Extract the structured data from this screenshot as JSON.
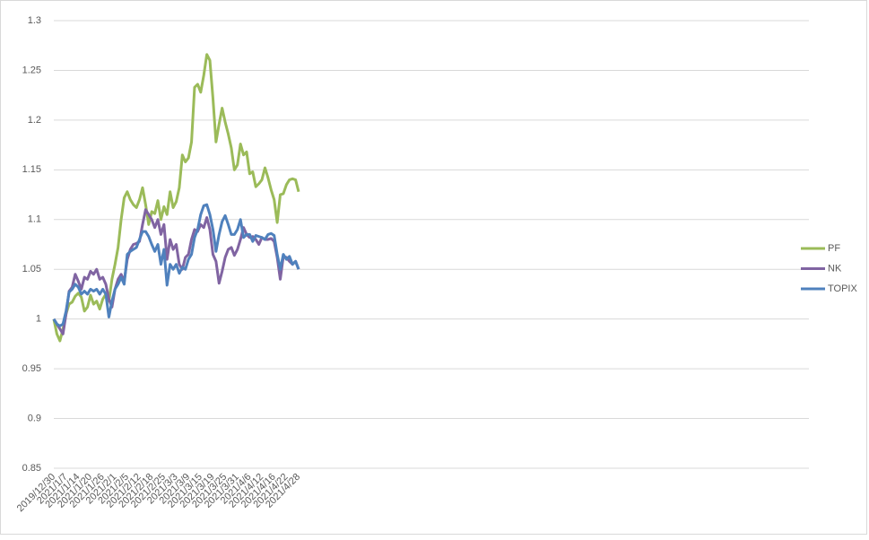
{
  "chart_data": {
    "type": "line",
    "categories": [
      "2019/12/30",
      null,
      null,
      null,
      "2021/1/7",
      null,
      null,
      null,
      "2021/1/14",
      null,
      null,
      null,
      "2021/1/20",
      null,
      null,
      null,
      "2021/1/26",
      null,
      null,
      null,
      "2021/2/1",
      null,
      null,
      null,
      "2021/2/5",
      null,
      null,
      null,
      "2021/2/12",
      null,
      null,
      null,
      "2021/2/18",
      null,
      null,
      null,
      "2021/2/25",
      null,
      null,
      null,
      "2021/3/3",
      null,
      null,
      null,
      "2021/3/9",
      null,
      null,
      null,
      "2021/3/15",
      null,
      null,
      null,
      "2021/3/19",
      null,
      null,
      null,
      "2021/3/25",
      null,
      null,
      null,
      "2021/3/31",
      null,
      null,
      null,
      "2021/4/6",
      null,
      null,
      null,
      "2021/4/12",
      null,
      null,
      null,
      "2021/4/16",
      null,
      null,
      null,
      "2021/4/22",
      null,
      null,
      null,
      "2021/4/28"
    ],
    "series": [
      {
        "name": "PF",
        "color": "#9bbb59",
        "values": [
          1.0,
          0.985,
          0.978,
          0.99,
          1.005,
          1.015,
          1.017,
          1.023,
          1.026,
          1.022,
          1.008,
          1.012,
          1.024,
          1.015,
          1.018,
          1.01,
          1.02,
          1.025,
          1.018,
          1.04,
          1.055,
          1.072,
          1.1,
          1.122,
          1.128,
          1.12,
          1.115,
          1.112,
          1.12,
          1.132,
          1.115,
          1.095,
          1.108,
          1.106,
          1.119,
          1.1,
          1.113,
          1.105,
          1.128,
          1.112,
          1.118,
          1.132,
          1.165,
          1.158,
          1.162,
          1.178,
          1.233,
          1.236,
          1.228,
          1.245,
          1.266,
          1.26,
          1.222,
          1.178,
          1.196,
          1.212,
          1.198,
          1.186,
          1.172,
          1.15,
          1.155,
          1.176,
          1.165,
          1.168,
          1.146,
          1.148,
          1.133,
          1.136,
          1.14,
          1.152,
          1.142,
          1.13,
          1.12,
          1.097,
          1.125,
          1.126,
          1.135,
          1.14,
          1.141,
          1.14,
          1.128
        ]
      },
      {
        "name": "NK",
        "color": "#8064a2",
        "values": [
          1.0,
          0.995,
          0.99,
          0.985,
          1.005,
          1.028,
          1.032,
          1.045,
          1.038,
          1.03,
          1.042,
          1.04,
          1.048,
          1.045,
          1.05,
          1.04,
          1.042,
          1.035,
          1.02,
          1.012,
          1.03,
          1.04,
          1.045,
          1.038,
          1.06,
          1.07,
          1.075,
          1.076,
          1.078,
          1.095,
          1.11,
          1.105,
          1.1,
          1.092,
          1.1,
          1.085,
          1.095,
          1.06,
          1.08,
          1.07,
          1.075,
          1.055,
          1.05,
          1.062,
          1.065,
          1.08,
          1.09,
          1.088,
          1.095,
          1.092,
          1.102,
          1.09,
          1.065,
          1.058,
          1.036,
          1.048,
          1.062,
          1.07,
          1.072,
          1.064,
          1.07,
          1.08,
          1.092,
          1.085,
          1.082,
          1.083,
          1.08,
          1.075,
          1.082,
          1.08,
          1.08,
          1.081,
          1.078,
          1.062,
          1.04,
          1.063,
          1.062,
          1.058,
          1.055,
          1.058,
          1.05
        ]
      },
      {
        "name": "TOPIX",
        "color": "#4f81bd",
        "values": [
          1.0,
          0.995,
          0.993,
          0.995,
          1.008,
          1.027,
          1.03,
          1.035,
          1.032,
          1.025,
          1.028,
          1.025,
          1.03,
          1.028,
          1.03,
          1.025,
          1.03,
          1.025,
          1.002,
          1.018,
          1.03,
          1.035,
          1.042,
          1.035,
          1.065,
          1.068,
          1.07,
          1.072,
          1.08,
          1.088,
          1.088,
          1.083,
          1.075,
          1.068,
          1.075,
          1.055,
          1.07,
          1.034,
          1.055,
          1.05,
          1.055,
          1.046,
          1.052,
          1.05,
          1.06,
          1.065,
          1.082,
          1.09,
          1.105,
          1.114,
          1.115,
          1.105,
          1.09,
          1.068,
          1.085,
          1.098,
          1.104,
          1.095,
          1.085,
          1.085,
          1.09,
          1.1,
          1.082,
          1.085,
          1.085,
          1.078,
          1.084,
          1.083,
          1.082,
          1.08,
          1.085,
          1.086,
          1.084,
          1.065,
          1.05,
          1.065,
          1.06,
          1.063,
          1.055,
          1.058,
          1.05
        ]
      }
    ],
    "ylim": [
      0.85,
      1.3
    ],
    "yticks": [
      0.85,
      0.9,
      0.95,
      1,
      1.05,
      1.1,
      1.15,
      1.2,
      1.25,
      1.3
    ],
    "grid": true,
    "legend": "right"
  }
}
